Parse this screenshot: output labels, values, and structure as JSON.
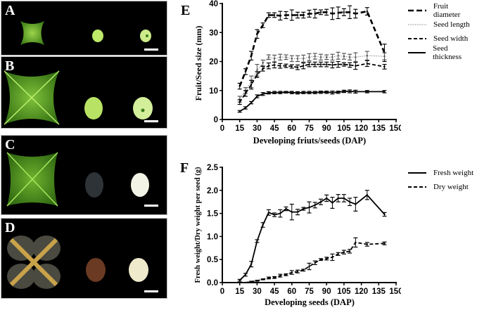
{
  "panels": [
    {
      "label": "A"
    },
    {
      "label": "B"
    },
    {
      "label": "C"
    },
    {
      "label": "D"
    }
  ],
  "chart_data": [
    {
      "panel": "E",
      "type": "line",
      "xlabel": "Developing friuts/seeds (DAP)",
      "ylabel": "Fruit/Seed size (mm)",
      "xlim": [
        0,
        150
      ],
      "ylim": [
        0,
        40
      ],
      "xticks": [
        "0",
        "15",
        "30",
        "45",
        "60",
        "75",
        "90",
        "105",
        "120",
        "135",
        "150"
      ],
      "yticks": [
        "0",
        "10",
        "20",
        "30",
        "40"
      ],
      "legend_position": "top-right",
      "series": [
        {
          "name": "Fruit diameter",
          "style": "longdash",
          "x": [
            15,
            20,
            25,
            30,
            35,
            40,
            45,
            50,
            55,
            60,
            65,
            70,
            75,
            80,
            85,
            90,
            95,
            100,
            105,
            110,
            115,
            125,
            140
          ],
          "y": [
            11.5,
            16.5,
            22,
            29.5,
            32.5,
            36,
            36,
            35.8,
            36,
            36,
            36,
            36,
            36.5,
            36.5,
            37,
            37,
            36.5,
            36.8,
            37,
            37,
            36.5,
            37.3,
            23
          ],
          "err": [
            1,
            1,
            1.5,
            1.5,
            0.8,
            0.8,
            0.8,
            1.5,
            1.2,
            1.8,
            1,
            1,
            1.2,
            1.5,
            0.8,
            1,
            2,
            2,
            1.2,
            2.2,
            1.5,
            1.3,
            3
          ]
        },
        {
          "name": "Seed length",
          "style": "dotted",
          "x": [
            15,
            20,
            25,
            30,
            35,
            40,
            45,
            50,
            55,
            60,
            65,
            70,
            75,
            80,
            85,
            90,
            95,
            100,
            105,
            110,
            115,
            125,
            140
          ],
          "y": [
            7,
            10,
            13,
            17,
            19.5,
            21.5,
            21,
            21.5,
            21.5,
            21,
            21,
            21,
            21.5,
            21.8,
            21.5,
            21.5,
            21.5,
            22,
            21.8,
            21.5,
            21.5,
            22,
            21.8
          ],
          "err": [
            1,
            1,
            2,
            2,
            1,
            0.8,
            1.2,
            1,
            0.8,
            1,
            1,
            1.2,
            1.2,
            1,
            1,
            0.8,
            1,
            1.2,
            1,
            1,
            1.5,
            1.5,
            1.2
          ]
        },
        {
          "name": "Seed width",
          "style": "dashed",
          "x": [
            15,
            20,
            25,
            30,
            35,
            40,
            45,
            50,
            55,
            60,
            65,
            70,
            75,
            80,
            85,
            90,
            95,
            100,
            105,
            110,
            115,
            125,
            140
          ],
          "y": [
            6,
            9,
            12,
            15.5,
            17.5,
            18.5,
            18.8,
            18.5,
            18.5,
            18.3,
            18,
            18.5,
            19,
            19,
            19,
            19,
            18.8,
            19,
            19,
            18.8,
            18.5,
            19.3,
            18.2
          ],
          "err": [
            0.8,
            1,
            1.5,
            1,
            0.8,
            1,
            1,
            0.8,
            0.6,
            0.6,
            0.8,
            1,
            0.8,
            0.8,
            0.8,
            0.8,
            1,
            1,
            0.6,
            0.8,
            1.2,
            1,
            0.8
          ]
        },
        {
          "name": "Seed thickness",
          "style": "solid",
          "x": [
            15,
            20,
            25,
            30,
            35,
            40,
            45,
            50,
            55,
            60,
            65,
            70,
            75,
            80,
            85,
            90,
            95,
            100,
            105,
            110,
            115,
            125,
            140
          ],
          "y": [
            2.8,
            4,
            5.8,
            8,
            8.8,
            9.2,
            9.3,
            9.3,
            9.4,
            9.3,
            9.2,
            9.3,
            9.3,
            9.3,
            9.4,
            9.4,
            9.3,
            9.4,
            9.7,
            9.7,
            9.6,
            9.6,
            9.6
          ],
          "err": [
            0.3,
            0.4,
            0.4,
            0.5,
            0.5,
            0.4,
            0.4,
            0.4,
            0.3,
            0.4,
            0.4,
            0.4,
            0.4,
            0.4,
            0.4,
            0.4,
            0.5,
            0.4,
            0.4,
            0.5,
            0.5,
            0.4,
            0.4
          ]
        }
      ]
    },
    {
      "panel": "F",
      "type": "line",
      "xlabel": "Developing seeds (DAP)",
      "ylabel": "Fresh weight/Dry weight per seed (g)",
      "xlim": [
        0,
        150
      ],
      "ylim": [
        0,
        2.5
      ],
      "xticks": [
        "0",
        "15",
        "30",
        "45",
        "60",
        "75",
        "90",
        "105",
        "120",
        "135",
        "150"
      ],
      "yticks": [
        "0.0",
        "0.5",
        "1.0",
        "1.5",
        "2.0",
        "2.5"
      ],
      "legend_position": "top-right",
      "series": [
        {
          "name": "Fresh weight",
          "style": "solid",
          "x": [
            15,
            20,
            25,
            30,
            35,
            40,
            45,
            50,
            55,
            60,
            65,
            70,
            75,
            80,
            85,
            90,
            95,
            100,
            105,
            110,
            115,
            125,
            140
          ],
          "y": [
            0.05,
            0.17,
            0.4,
            0.9,
            1.25,
            1.52,
            1.47,
            1.5,
            1.6,
            1.53,
            1.53,
            1.6,
            1.63,
            1.68,
            1.75,
            1.83,
            1.73,
            1.83,
            1.83,
            1.75,
            1.7,
            1.9,
            1.48
          ],
          "err": [
            0.02,
            0.03,
            0.06,
            0.03,
            0.05,
            0.06,
            0.04,
            0.08,
            0.04,
            0.17,
            0.06,
            0.03,
            0.12,
            0.06,
            0.06,
            0.07,
            0.12,
            0.08,
            0.08,
            0.08,
            0.15,
            0.1,
            0.04
          ]
        },
        {
          "name": "Dry weight",
          "style": "dashed",
          "x": [
            15,
            20,
            25,
            30,
            35,
            40,
            45,
            50,
            55,
            60,
            65,
            70,
            75,
            80,
            85,
            90,
            95,
            100,
            105,
            110,
            115,
            125,
            140
          ],
          "y": [
            0,
            0,
            0.02,
            0.04,
            0.07,
            0.1,
            0.11,
            0.15,
            0.17,
            0.22,
            0.24,
            0.27,
            0.35,
            0.43,
            0.5,
            0.52,
            0.55,
            0.62,
            0.66,
            0.68,
            0.87,
            0.83,
            0.85
          ],
          "err": [
            0,
            0,
            0.01,
            0.01,
            0.01,
            0.02,
            0.02,
            0.03,
            0.02,
            0.04,
            0.03,
            0.02,
            0.07,
            0.04,
            0.02,
            0.03,
            0.07,
            0.03,
            0.04,
            0.04,
            0.1,
            0.04,
            0.03
          ]
        }
      ]
    }
  ]
}
